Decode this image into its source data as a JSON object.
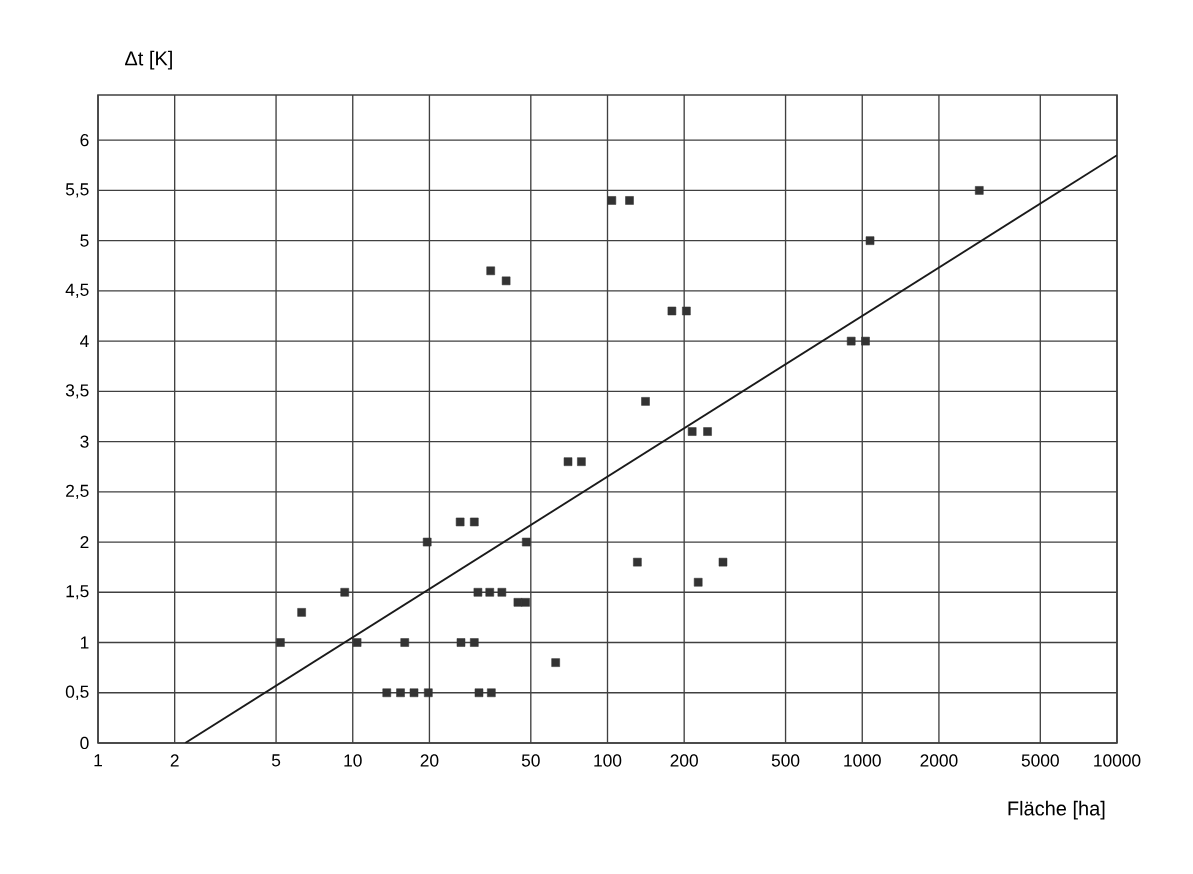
{
  "chart_data": {
    "type": "scatter",
    "xlabel": "Fläche [ha]",
    "ylabel": "Δt [K]",
    "log": "x",
    "grid": true,
    "marker": "square",
    "xlim": [
      1,
      10000
    ],
    "ylim": [
      0,
      6.45
    ],
    "xticks": [
      1,
      2,
      5,
      10,
      20,
      50,
      100,
      200,
      500,
      1000,
      2000,
      5000,
      10000
    ],
    "yticks": [
      0,
      {
        "value": 0.5,
        "label": "0,5"
      },
      1,
      {
        "value": 1.5,
        "label": "1,5"
      },
      2,
      {
        "value": 2.5,
        "label": "2,5"
      },
      3,
      {
        "value": 3.5,
        "label": "3,5"
      },
      4,
      {
        "value": 4.5,
        "label": "4,5"
      },
      5,
      {
        "value": 5.5,
        "label": "5,5"
      },
      6
    ],
    "series": [
      {
        "color": "#333333",
        "x": [
          5.2,
          6.3,
          9.3,
          10.4,
          13.6,
          15.4,
          16,
          17.4,
          19.8,
          19.6,
          26.4,
          30,
          26.6,
          30,
          31,
          34.5,
          38.5,
          31.3,
          35,
          34.8,
          40,
          44.5,
          47.7,
          48,
          62.6,
          70,
          79,
          104,
          122,
          141,
          131,
          179,
          204,
          215,
          247,
          227,
          284,
          905,
          1030,
          1073,
          2880
        ],
        "values": [
          1.0,
          1.3,
          1.5,
          1.0,
          0.5,
          0.5,
          1.0,
          0.5,
          0.5,
          2.0,
          2.2,
          2.2,
          1.0,
          1.0,
          1.5,
          1.5,
          1.5,
          0.5,
          0.5,
          4.7,
          4.6,
          1.4,
          1.4,
          2.0,
          0.8,
          2.8,
          2.8,
          5.4,
          5.4,
          3.4,
          1.8,
          4.3,
          4.3,
          3.1,
          3.1,
          1.6,
          1.8,
          4.0,
          4.0,
          5.0,
          5.5
        ]
      },
      {
        "type": "line",
        "color": "#1a1a1a",
        "marker": "none",
        "x": [
          2.2,
          10000
        ],
        "values": [
          0,
          5.85
        ]
      }
    ]
  }
}
